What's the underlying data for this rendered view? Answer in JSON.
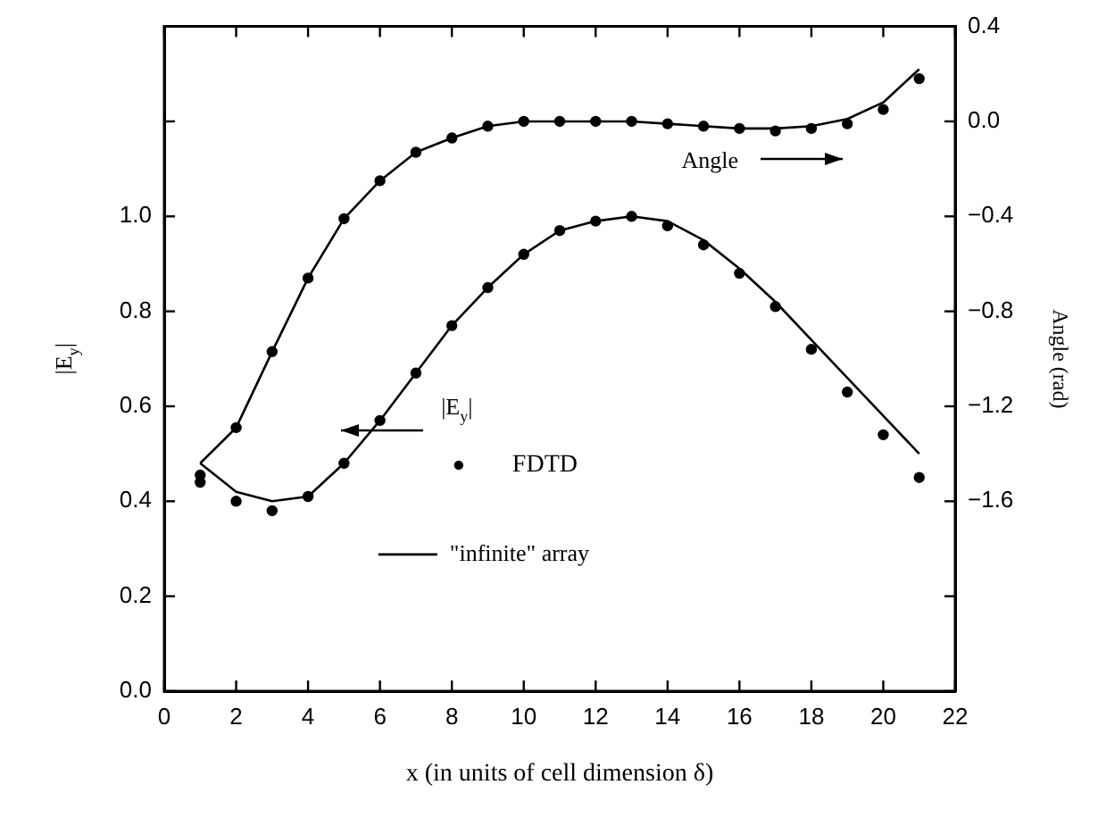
{
  "chart_data": {
    "type": "scatter",
    "xlabel": "x (in units of cell dimension δ)",
    "ylabel": "|E$_{y}$|",
    "y2label": "Angle (rad)",
    "x": [
      1,
      2,
      3,
      4,
      5,
      6,
      7,
      8,
      9,
      10,
      11,
      12,
      13,
      14,
      15,
      16,
      17,
      18,
      19,
      20,
      21
    ],
    "series": [
      {
        "name": "FDTD",
        "marker": "circle",
        "color": "#000000",
        "values": [
          0.44,
          0.4,
          0.38,
          0.41,
          0.48,
          0.57,
          0.67,
          0.77,
          0.85,
          0.92,
          0.97,
          0.99,
          1.0,
          0.98,
          0.94,
          0.88,
          0.81,
          0.72,
          0.63,
          0.54,
          0.45
        ]
      },
      {
        "marker": "circle",
        "axis": "y2",
        "color": "#000000",
        "values": [
          -1.49,
          -1.29,
          -0.97,
          -0.66,
          -0.41,
          -0.25,
          -0.13,
          -0.07,
          -0.02,
          0.0,
          0.0,
          0.0,
          0.0,
          -0.01,
          -0.02,
          -0.03,
          -0.04,
          -0.03,
          -0.01,
          0.05,
          0.18
        ]
      },
      {
        "name": "\"infinite\" array",
        "type": "line",
        "color": "#000000",
        "values": [
          0.48,
          0.42,
          0.4,
          0.41,
          0.48,
          0.57,
          0.67,
          0.77,
          0.85,
          0.92,
          0.97,
          0.99,
          1.0,
          0.99,
          0.95,
          0.89,
          0.82,
          0.74,
          0.66,
          0.58,
          0.5
        ]
      },
      {
        "type": "line",
        "axis": "y2",
        "color": "#000000",
        "values": [
          -1.44,
          -1.29,
          -0.97,
          -0.66,
          -0.41,
          -0.25,
          -0.13,
          -0.07,
          -0.02,
          0.0,
          0.0,
          0.0,
          0.0,
          -0.01,
          -0.02,
          -0.03,
          -0.03,
          -0.02,
          0.01,
          0.08,
          0.22
        ]
      }
    ],
    "xlim": [
      0,
      22
    ],
    "xticks": [
      0,
      2,
      4,
      6,
      8,
      10,
      12,
      14,
      16,
      18,
      20,
      22
    ],
    "ylim": [
      0,
      1.4
    ],
    "yticks": [
      {
        "value": 0,
        "label": "0.0"
      },
      0.2,
      0.4,
      0.6,
      0.8,
      {
        "value": 1,
        "label": "1.0"
      },
      {
        "value": 1.2,
        "label": null
      },
      {
        "value": 1.4,
        "label": null
      }
    ],
    "y2lim": [
      -2.4,
      0.4
    ],
    "y2ticks": [
      {
        "value": -2.4,
        "label": null
      },
      {
        "value": -2.0,
        "label": null
      },
      {
        "value": -1.6,
        "label": "−1.6"
      },
      {
        "value": -1.2,
        "label": "−1.2"
      },
      {
        "value": -0.8,
        "label": "−0.8"
      },
      {
        "value": -0.4,
        "label": "−0.4"
      },
      {
        "value": 0,
        "label": "0.0"
      },
      0.4
    ],
    "annotations": [
      "|E$_{y}$|",
      "Angle"
    ],
    "grid": false,
    "legend": "bottom",
    "line_style": "solid"
  }
}
